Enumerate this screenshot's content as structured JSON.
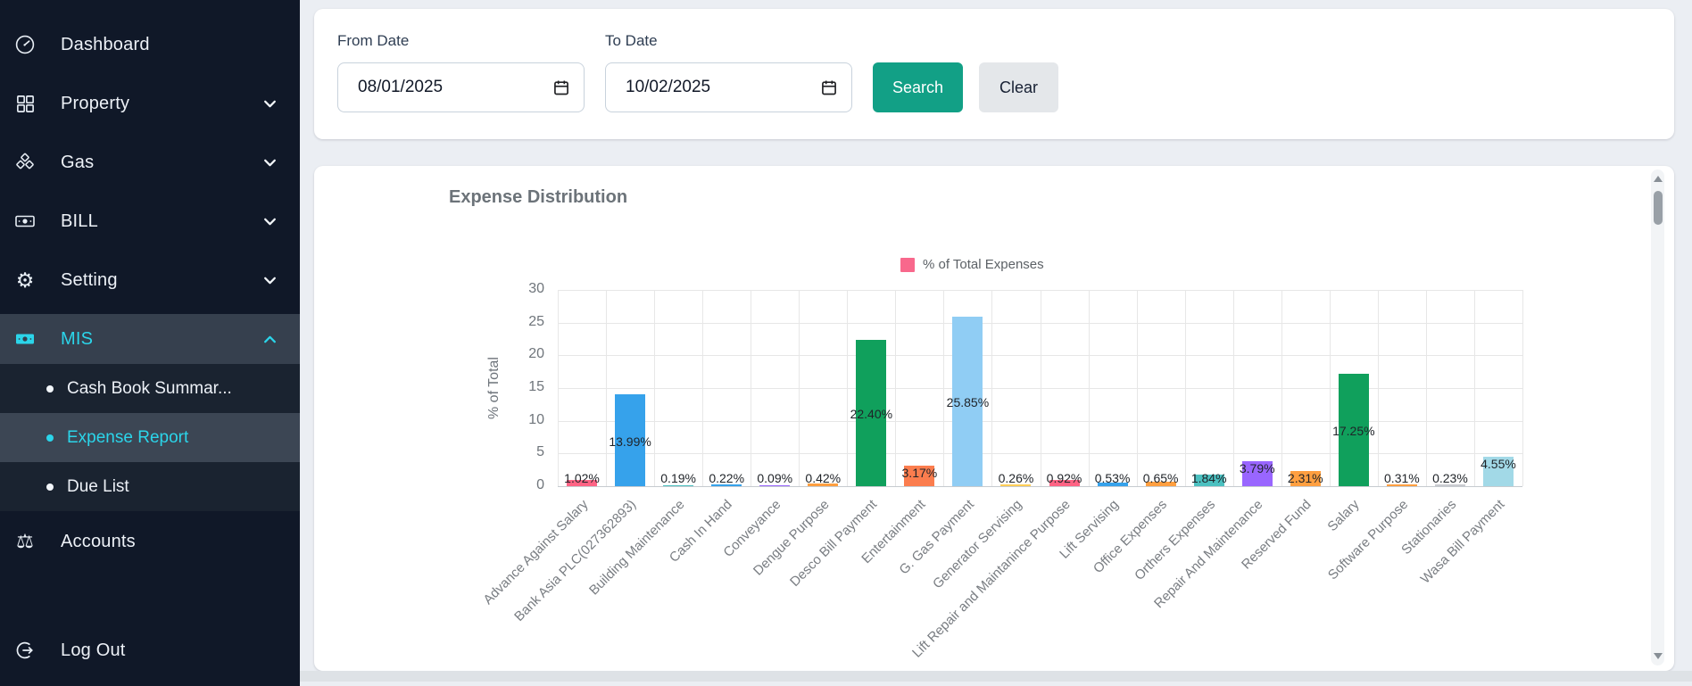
{
  "sidebar": {
    "items": [
      {
        "label": "Dashboard"
      },
      {
        "label": "Property"
      },
      {
        "label": "Gas"
      },
      {
        "label": "BILL"
      },
      {
        "label": "Setting"
      },
      {
        "label": "MIS"
      }
    ],
    "submenu": [
      {
        "label": "Cash Book Summar..."
      },
      {
        "label": "Expense Report"
      },
      {
        "label": "Due List"
      }
    ],
    "accounts": {
      "label": "Accounts"
    },
    "logout": {
      "label": "Log Out"
    },
    "accent_color": "#2BD5EA"
  },
  "filter": {
    "from_label": "From Date",
    "from_value": "08/01/2025",
    "to_label": "To Date",
    "to_value": "10/02/2025",
    "search_label": "Search",
    "clear_label": "Clear",
    "search_color": "#12A086"
  },
  "chart_data": {
    "type": "bar",
    "title": "Expense Distribution",
    "legend_label": "% of Total Expenses",
    "legend_color": "#F8688C",
    "legend_position": "top",
    "ylabel": "% of Total",
    "xlabel": "",
    "ylim": [
      0,
      30
    ],
    "ytick_step": 5,
    "grid": true,
    "categories": [
      "Advance Against Salary",
      "Bank Asia PLC(027362893)",
      "Building Maintenance",
      "Cash In Hand",
      "Conveyance",
      "Dengue Purpose",
      "Desco Bill Payment",
      "Entertainment",
      "G. Gas Payment",
      "Generator Servising",
      "Lift Repair and Maintanince Purpose",
      "Lift Servising",
      "Office Expenses",
      "Orthers Expenses",
      "Repair And Maintenance",
      "Reserved Fund",
      "Salary",
      "Software Purpose",
      "Stationaries",
      "Wasa Bill Payment"
    ],
    "values": [
      1.02,
      13.99,
      0.19,
      0.22,
      0.09,
      0.42,
      22.4,
      3.17,
      25.85,
      0.26,
      0.92,
      0.53,
      0.65,
      1.84,
      3.79,
      2.31,
      17.25,
      0.31,
      0.23,
      4.55
    ],
    "value_labels": [
      "1.02%",
      "13.99%",
      "0.19%",
      "0.22%",
      "0.09%",
      "0.42%",
      "22.40%",
      "3.17%",
      "25.85%",
      "0.26%",
      "0.92%",
      "0.53%",
      "0.65%",
      "1.84%",
      "3.79%",
      "2.31%",
      "17.25%",
      "0.31%",
      "0.23%",
      "4.55%"
    ],
    "bar_colors": [
      "#FF6384",
      "#36A2EB",
      "#4BC0C0",
      "#36A2EB",
      "#9966FF",
      "#FF9F40",
      "#10A05C",
      "#FB7D4E",
      "#90CDF4",
      "#FFCD56",
      "#FF6384",
      "#36A2EB",
      "#FF9F40",
      "#4BC0C0",
      "#9966FF",
      "#FF9F40",
      "#10A05C",
      "#FF9F40",
      "#C9CBCF",
      "#A2D9E7"
    ]
  }
}
